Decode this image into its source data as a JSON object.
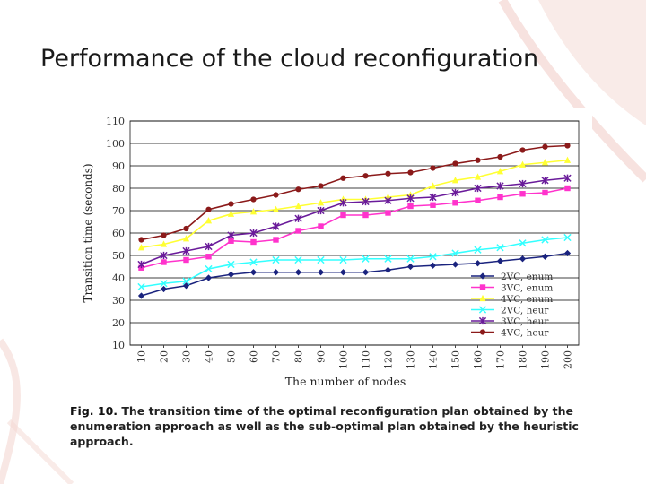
{
  "slide": {
    "title": "Performance of the cloud reconfiguration"
  },
  "caption": {
    "label": "Fig. 10.",
    "text": "The transition time of the optimal reconfiguration plan obtained by the enumeration approach as well as the sub-optimal plan obtained by the heuristic approach."
  },
  "colors": {
    "background_accent": "#f3d7d2",
    "grid": "#000000",
    "s_2vc_enum": "#1a237e",
    "s_3vc_enum": "#ff33cc",
    "s_4vc_enum": "#ffff33",
    "s_2vc_heur": "#33ffff",
    "s_3vc_heur": "#6a1b9a",
    "s_4vc_heur": "#8b1a1a"
  },
  "chart_data": {
    "type": "line",
    "title": "",
    "xlabel": "The number of nodes",
    "ylabel": "Transition time (seconds)",
    "categories": [
      "10",
      "20",
      "30",
      "40",
      "50",
      "60",
      "70",
      "80",
      "90",
      "100",
      "110",
      "120",
      "130",
      "140",
      "150",
      "160",
      "170",
      "180",
      "190",
      "200"
    ],
    "ylim": [
      10,
      110
    ],
    "yticks": [
      10,
      20,
      30,
      40,
      50,
      60,
      70,
      80,
      90,
      100,
      110
    ],
    "grid": true,
    "legend_position": "bottom-right",
    "series": [
      {
        "name": "2VC, enum",
        "marker": "diamond",
        "color": "#1a237e",
        "values": [
          32,
          35,
          36.5,
          40,
          41.5,
          42.5,
          42.5,
          42.5,
          42.5,
          42.5,
          42.5,
          43.5,
          45,
          45.5,
          46,
          46.5,
          47.5,
          48.5,
          49.5,
          51
        ]
      },
      {
        "name": "3VC, enum",
        "marker": "square",
        "color": "#ff33cc",
        "values": [
          44.5,
          47,
          48,
          49.5,
          56.5,
          56,
          57,
          61,
          63,
          68,
          68,
          69,
          72,
          72.5,
          73.5,
          74.5,
          76,
          77.5,
          78,
          80
        ]
      },
      {
        "name": "4VC, enum",
        "marker": "triangle",
        "color": "#ffff33",
        "values": [
          53.5,
          55,
          57.5,
          65.5,
          68.5,
          69.5,
          70.5,
          72,
          73.5,
          75,
          75,
          76,
          77,
          81,
          83.5,
          85,
          87.5,
          90.5,
          91.5,
          92.5
        ]
      },
      {
        "name": "2VC, heur",
        "marker": "x",
        "color": "#33ffff",
        "values": [
          36,
          37.5,
          38.5,
          44,
          46,
          47,
          48,
          48,
          48,
          48,
          48.5,
          48.5,
          48.5,
          49.5,
          51,
          52.5,
          53.5,
          55.5,
          57,
          58
        ]
      },
      {
        "name": "3VC, heur",
        "marker": "star",
        "color": "#6a1b9a",
        "values": [
          46,
          50,
          52,
          54,
          59,
          60,
          63,
          66.5,
          70,
          73.5,
          74,
          74.5,
          75.5,
          76,
          78,
          80,
          81,
          82,
          83.5,
          84.5
        ]
      },
      {
        "name": "4VC, heur",
        "marker": "circle",
        "color": "#8b1a1a",
        "values": [
          57,
          59,
          62,
          70.5,
          73,
          75,
          77,
          79.5,
          81,
          84.5,
          85.5,
          86.5,
          87,
          89,
          91,
          92.5,
          94,
          97,
          98.5,
          99
        ]
      }
    ]
  }
}
